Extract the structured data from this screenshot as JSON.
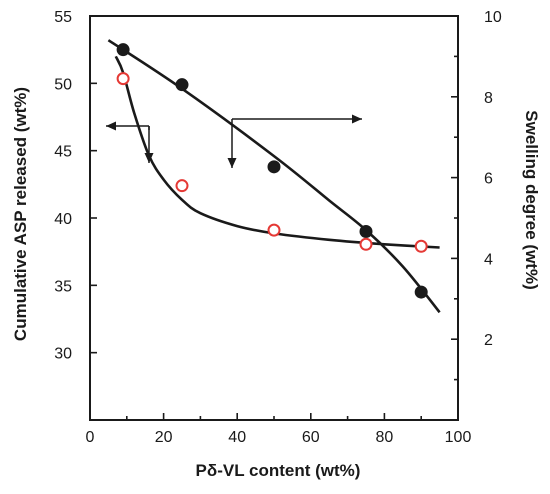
{
  "chart_data": {
    "type": "scatter",
    "title": "",
    "xlabel": "Pδ-VL content (wt%)",
    "ylabel_left": "Cumulative ASP released (wt%)",
    "ylabel_right": "Swelling degree (wt%)",
    "xlim": [
      0,
      100
    ],
    "ylim_left": [
      25,
      55
    ],
    "ylim_right": [
      0,
      10
    ],
    "x_ticks": [
      "0",
      "20",
      "40",
      "60",
      "80",
      "100"
    ],
    "y_left_ticks": [
      "30",
      "35",
      "40",
      "45",
      "50",
      "55"
    ],
    "y_right_ticks": [
      "2",
      "4",
      "6",
      "8",
      "10"
    ],
    "grid": false,
    "legend": "none",
    "series": [
      {
        "axis": "left",
        "marker": "filled-circle",
        "color": "#1a1a1a",
        "x": [
          9,
          25,
          50,
          75,
          90
        ],
        "y": [
          52.5,
          49.9,
          43.8,
          39.0,
          34.5
        ],
        "fit": [
          [
            5,
            53.2
          ],
          [
            25,
            49.6
          ],
          [
            50,
            44.6
          ],
          [
            65,
            41.3
          ],
          [
            75,
            39.1
          ],
          [
            85,
            36.4
          ],
          [
            95,
            33.0
          ]
        ]
      },
      {
        "axis": "right",
        "marker": "open-circle",
        "color": "#e53935",
        "x": [
          9,
          25,
          50,
          75,
          90
        ],
        "y": [
          8.45,
          5.8,
          4.7,
          4.35,
          4.3
        ],
        "fit": [
          [
            7,
            9.0
          ],
          [
            9,
            8.6
          ],
          [
            12,
            7.6
          ],
          [
            16,
            6.55
          ],
          [
            20,
            5.95
          ],
          [
            25,
            5.45
          ],
          [
            30,
            5.12
          ],
          [
            40,
            4.8
          ],
          [
            50,
            4.62
          ],
          [
            65,
            4.46
          ],
          [
            80,
            4.35
          ],
          [
            95,
            4.27
          ]
        ]
      }
    ]
  }
}
